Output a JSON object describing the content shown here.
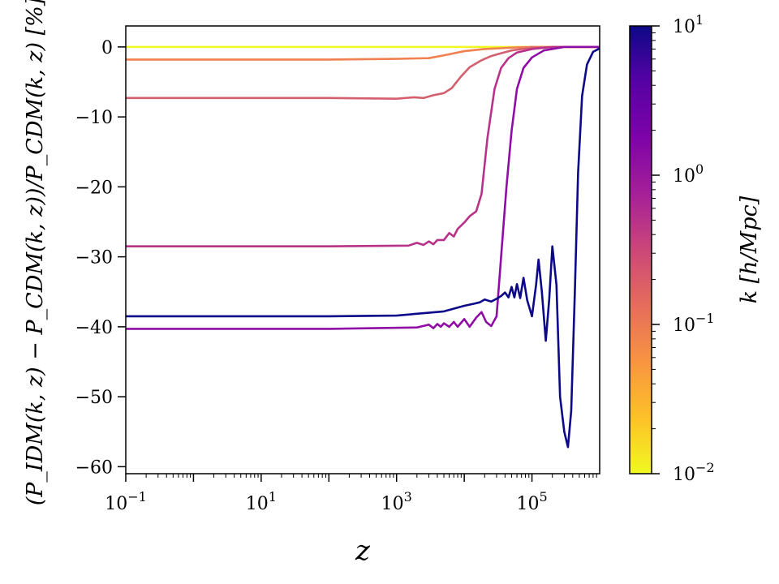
{
  "chart_data": {
    "type": "line",
    "xscale": "log",
    "xlim": [
      0.1,
      1000000
    ],
    "ylim": [
      -61,
      3
    ],
    "x_ticks": [
      {
        "value": 0.1,
        "base": "10",
        "exp": "−1"
      },
      {
        "value": 10,
        "base": "10",
        "exp": "1"
      },
      {
        "value": 1000,
        "base": "10",
        "exp": "3"
      },
      {
        "value": 100000,
        "base": "10",
        "exp": "5"
      }
    ],
    "y_ticks": [
      {
        "value": 0,
        "label": "0"
      },
      {
        "value": -10,
        "label": "−10"
      },
      {
        "value": -20,
        "label": "−20"
      },
      {
        "value": -30,
        "label": "−30"
      },
      {
        "value": -40,
        "label": "−40"
      },
      {
        "value": -50,
        "label": "−50"
      },
      {
        "value": -60,
        "label": "−60"
      }
    ],
    "xlabel": "z",
    "ylabel": "(P_IDM(k, z) − P_CDM(k, z))/P_CDM(k, z) [%]",
    "colorbar": {
      "label": "k [h/Mpc]",
      "scale": "log",
      "range": [
        0.01,
        10
      ],
      "colormap": "plasma",
      "ticks": [
        {
          "value": 10,
          "base": "10",
          "exp": "1"
        },
        {
          "value": 1,
          "base": "10",
          "exp": "0"
        },
        {
          "value": 0.1,
          "base": "10",
          "exp": "−1"
        },
        {
          "value": 0.01,
          "base": "10",
          "exp": "−2"
        }
      ]
    },
    "series": [
      {
        "color": "#f0f921",
        "points": [
          [
            0.1,
            0
          ],
          [
            1000,
            0
          ],
          [
            10000,
            0
          ],
          [
            30000,
            0
          ],
          [
            100000,
            0
          ],
          [
            1000000,
            0
          ]
        ]
      },
      {
        "color": "#f0804f",
        "points": [
          [
            0.1,
            -1.8
          ],
          [
            100,
            -1.8
          ],
          [
            1000,
            -1.7
          ],
          [
            3000,
            -1.6
          ],
          [
            5000,
            -1.2
          ],
          [
            10000,
            -0.6
          ],
          [
            20000,
            -0.3
          ],
          [
            50000,
            -0.1
          ],
          [
            100000,
            0
          ],
          [
            1000000,
            0
          ]
        ]
      },
      {
        "color": "#d45f6e",
        "points": [
          [
            0.1,
            -7.3
          ],
          [
            100,
            -7.3
          ],
          [
            1000,
            -7.4
          ],
          [
            1800,
            -7.2
          ],
          [
            2500,
            -7.3
          ],
          [
            3500,
            -6.9
          ],
          [
            5000,
            -6.6
          ],
          [
            6500,
            -5.9
          ],
          [
            9000,
            -4.2
          ],
          [
            12000,
            -2.9
          ],
          [
            18000,
            -1.9
          ],
          [
            25000,
            -1.3
          ],
          [
            35000,
            -0.9
          ],
          [
            50000,
            -0.5
          ],
          [
            100000,
            -0.1
          ],
          [
            300000,
            0
          ],
          [
            1000000,
            0
          ]
        ]
      },
      {
        "color": "#b83289",
        "points": [
          [
            0.1,
            -28.5
          ],
          [
            100,
            -28.5
          ],
          [
            1500,
            -28.4
          ],
          [
            2000,
            -28.0
          ],
          [
            2500,
            -28.3
          ],
          [
            3000,
            -27.8
          ],
          [
            3500,
            -28.2
          ],
          [
            4000,
            -27.6
          ],
          [
            5000,
            -27.6
          ],
          [
            6000,
            -26.6
          ],
          [
            7000,
            -27.1
          ],
          [
            8000,
            -26.0
          ],
          [
            10000,
            -25.1
          ],
          [
            12000,
            -24.2
          ],
          [
            15000,
            -23.5
          ],
          [
            18000,
            -21.0
          ],
          [
            22000,
            -13.0
          ],
          [
            28000,
            -6.0
          ],
          [
            35000,
            -3.0
          ],
          [
            45000,
            -1.6
          ],
          [
            60000,
            -0.8
          ],
          [
            100000,
            -0.3
          ],
          [
            200000,
            0
          ],
          [
            1000000,
            0
          ]
        ]
      },
      {
        "color": "#8f0da4",
        "points": [
          [
            0.1,
            -40.3
          ],
          [
            100,
            -40.3
          ],
          [
            2000,
            -40.1
          ],
          [
            3000,
            -39.7
          ],
          [
            3500,
            -40.2
          ],
          [
            4000,
            -39.6
          ],
          [
            4500,
            -40.0
          ],
          [
            5000,
            -39.5
          ],
          [
            6000,
            -40.0
          ],
          [
            7000,
            -39.3
          ],
          [
            8000,
            -40.0
          ],
          [
            10000,
            -38.9
          ],
          [
            12000,
            -40.0
          ],
          [
            15000,
            -38.7
          ],
          [
            18000,
            -37.9
          ],
          [
            21000,
            -39.3
          ],
          [
            25000,
            -39.9
          ],
          [
            30000,
            -38.5
          ],
          [
            35000,
            -30.0
          ],
          [
            42000,
            -20.0
          ],
          [
            50000,
            -12.0
          ],
          [
            60000,
            -6.0
          ],
          [
            75000,
            -3.0
          ],
          [
            100000,
            -1.5
          ],
          [
            150000,
            -0.5
          ],
          [
            300000,
            0
          ],
          [
            1000000,
            0
          ]
        ]
      },
      {
        "color": "#0d0887",
        "points": [
          [
            0.1,
            -38.5
          ],
          [
            100,
            -38.5
          ],
          [
            1000,
            -38.4
          ],
          [
            5000,
            -37.8
          ],
          [
            10000,
            -37.0
          ],
          [
            14000,
            -36.7
          ],
          [
            17000,
            -36.5
          ],
          [
            20000,
            -36.1
          ],
          [
            25000,
            -36.4
          ],
          [
            30000,
            -36.0
          ],
          [
            35000,
            -35.6
          ],
          [
            40000,
            -35.1
          ],
          [
            45000,
            -35.8
          ],
          [
            50000,
            -34.3
          ],
          [
            55000,
            -35.8
          ],
          [
            60000,
            -33.9
          ],
          [
            67000,
            -35.9
          ],
          [
            75000,
            -33.0
          ],
          [
            85000,
            -36.2
          ],
          [
            100000,
            -38.5
          ],
          [
            115000,
            -34.0
          ],
          [
            125000,
            -30.4
          ],
          [
            140000,
            -35.0
          ],
          [
            160000,
            -42.0
          ],
          [
            180000,
            -36.0
          ],
          [
            200000,
            -28.5
          ],
          [
            230000,
            -34.0
          ],
          [
            260000,
            -50.0
          ],
          [
            300000,
            -55.0
          ],
          [
            340000,
            -57.2
          ],
          [
            380000,
            -52.0
          ],
          [
            430000,
            -35.0
          ],
          [
            480000,
            -18.0
          ],
          [
            550000,
            -7.0
          ],
          [
            650000,
            -2.5
          ],
          [
            800000,
            -0.7
          ],
          [
            1000000,
            -0.2
          ]
        ]
      }
    ]
  }
}
